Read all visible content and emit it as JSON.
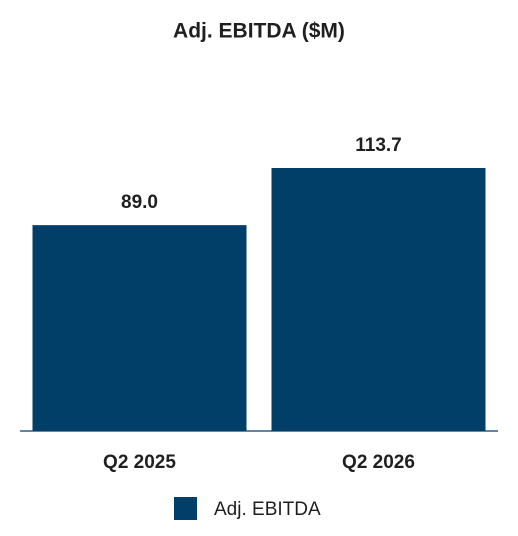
{
  "chart_data": {
    "type": "bar",
    "title": "Adj. EBITDA ($M)",
    "categories": [
      "Q2 2025",
      "Q2 2026"
    ],
    "series": [
      {
        "name": "Adj. EBITDA",
        "color": "#013f68",
        "values": [
          89.0,
          113.7
        ],
        "value_labels": [
          "89.0",
          "113.7"
        ]
      }
    ],
    "legend": "bottom"
  }
}
